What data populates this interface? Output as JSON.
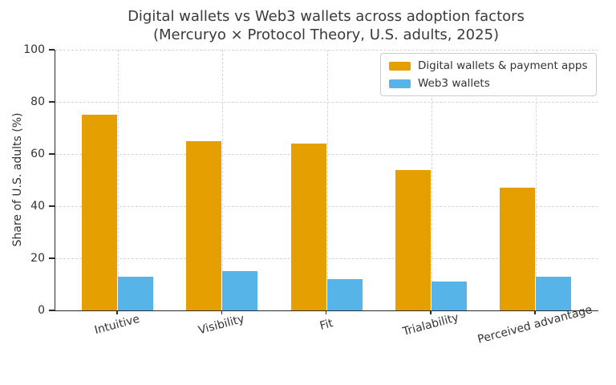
{
  "chart_data": {
    "type": "bar",
    "title": "Digital wallets vs Web3 wallets across adoption factors",
    "subtitle": "(Mercuryo × Protocol Theory, U.S. adults, 2025)",
    "categories": [
      "Intuitive",
      "Visibility",
      "Fit",
      "Trialability",
      "Perceived advantage"
    ],
    "series": [
      {
        "name": "Digital wallets & payment apps",
        "color": "#E69F00",
        "values": [
          75,
          65,
          64,
          54,
          47
        ]
      },
      {
        "name": "Web3 wallets",
        "color": "#56B4E9",
        "values": [
          13,
          15,
          12,
          11,
          13
        ]
      }
    ],
    "xlabel": "",
    "ylabel": "Share of U.S. adults (%)",
    "ylim": [
      0,
      100
    ],
    "yticks": [
      0,
      20,
      40,
      60,
      80,
      100
    ],
    "grid": true,
    "grid_style": "dashed",
    "legend_position": "upper right",
    "xtick_rotation": 15
  }
}
